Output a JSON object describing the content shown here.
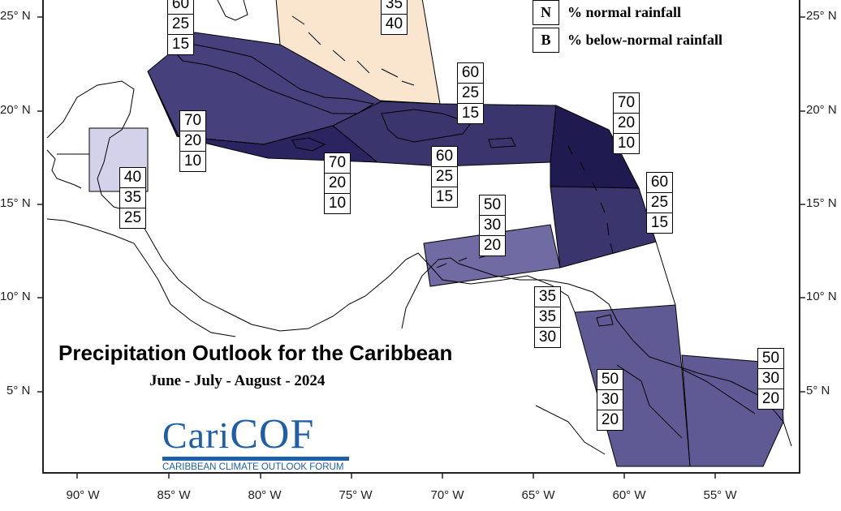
{
  "title": "Precipitation Outlook for the Caribbean",
  "subtitle": "June - July - August - 2024",
  "legend": [
    {
      "key": "N",
      "label": "% normal rainfall"
    },
    {
      "key": "B",
      "label": "% below-normal rainfall"
    }
  ],
  "logo": {
    "word_a": "Cari",
    "word_b": "COF",
    "tagline": "CARIBBEAN CLIMATE OUTLOOK FORUM"
  },
  "lat_labels": [
    "25° N",
    "20° N",
    "15° N",
    "10° N",
    "5° N"
  ],
  "lon_labels": [
    "90° W",
    "85° W",
    "80° W",
    "75° W",
    "70° W",
    "65° W",
    "60° W",
    "55° W"
  ],
  "colors": {
    "very_dark": "#1f1a4f",
    "dark": "#3a356d",
    "medium_dark": "#46417d",
    "medium": "#5f5a93",
    "light_medium": "#706ba2",
    "light": "#d3d2ea",
    "above_normal": "#fae6cf",
    "frame": "#222222"
  },
  "probability_boxes": [
    {
      "region": "bahamas-west",
      "values": [
        "60",
        "25",
        "15"
      ]
    },
    {
      "region": "bahamas-east",
      "values": [
        "35",
        "40"
      ]
    },
    {
      "region": "cuba",
      "values": [
        "70",
        "20",
        "10"
      ]
    },
    {
      "region": "jamaica",
      "values": [
        "70",
        "20",
        "10"
      ]
    },
    {
      "region": "hispaniola",
      "values": [
        "60",
        "25",
        "15"
      ]
    },
    {
      "region": "turks-caicos",
      "values": [
        "60",
        "25",
        "15"
      ]
    },
    {
      "region": "northern-lesser-antilles",
      "values": [
        "70",
        "20",
        "10"
      ]
    },
    {
      "region": "southern-lesser-antilles",
      "values": [
        "60",
        "25",
        "15"
      ]
    },
    {
      "region": "belize",
      "values": [
        "40",
        "35",
        "25"
      ]
    },
    {
      "region": "abc-islands",
      "values": [
        "50",
        "30",
        "20"
      ]
    },
    {
      "region": "trinidad",
      "values": [
        "35",
        "35",
        "30"
      ]
    },
    {
      "region": "guyana",
      "values": [
        "50",
        "30",
        "20"
      ]
    },
    {
      "region": "french-guiana",
      "values": [
        "50",
        "30",
        "20"
      ]
    }
  ]
}
